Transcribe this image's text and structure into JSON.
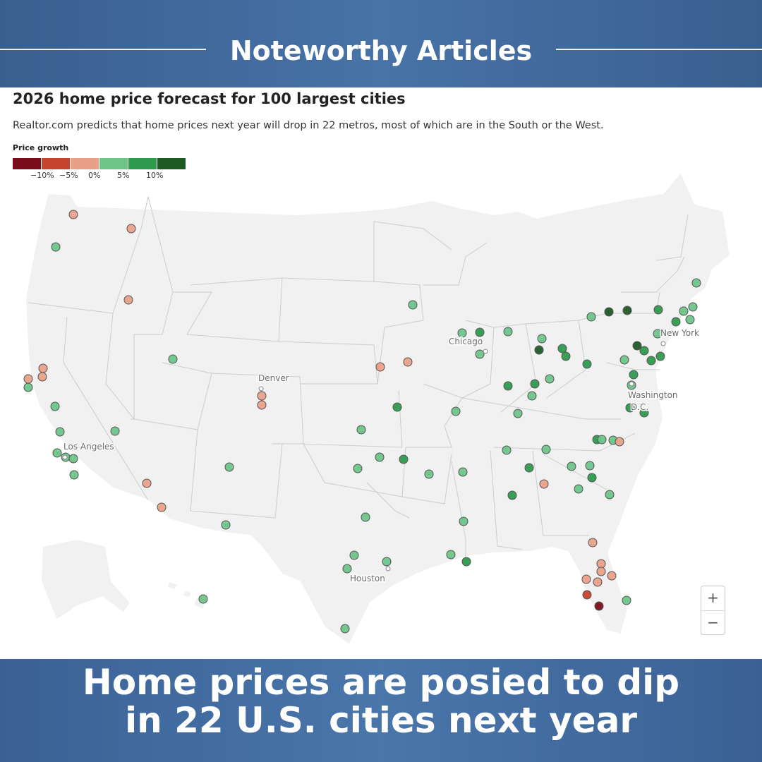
{
  "banner": {
    "title": "Noteworthy Articles"
  },
  "chart": {
    "title": "2026 home price forecast for 100 largest cities",
    "subtitle": "Realtor.com predicts that home prices  next year will drop in 22 metros, most of which are in the South or the West.",
    "legend_title": "Price growth",
    "legend_colors": [
      "#7a0d1a",
      "#c4452c",
      "#e8a088",
      "#6cc489",
      "#2e9a4e",
      "#1e5a24"
    ],
    "legend_ticks": [
      "−10%",
      "−5%",
      "0%",
      "5%",
      "10%"
    ]
  },
  "map": {
    "labels": {
      "chicago": "Chicago",
      "denver": "Denver",
      "new_york": "New York",
      "washington_1": "Washington",
      "washington_2": "D.C.",
      "los_angeles": "Los Angeles",
      "houston": "Houston"
    }
  },
  "zoom": {
    "in": "+",
    "out": "−"
  },
  "headline": {
    "line1": "Home prices are posied to dip",
    "line2": "in 22 U.S. cities next year"
  }
}
